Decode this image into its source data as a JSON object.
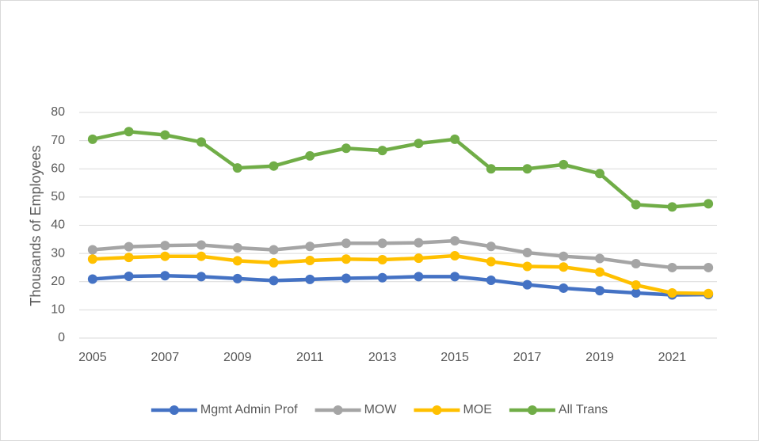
{
  "chart_data": {
    "type": "line",
    "y_label": "Thousands of Employees",
    "categories": [
      2005,
      null,
      2007,
      null,
      2009,
      null,
      2011,
      null,
      2013,
      null,
      2015,
      null,
      2017,
      null,
      2019,
      null,
      2021,
      null
    ],
    "series": [
      {
        "name": "Mgmt Admin Prof",
        "color": "#4472c4",
        "values": [
          20.9,
          21.9,
          22.1,
          21.8,
          21.1,
          20.4,
          20.8,
          21.2,
          21.4,
          21.8,
          21.8,
          20.5,
          18.9,
          17.7,
          16.8,
          16.0,
          15.3,
          15.4
        ]
      },
      {
        "name": "MOW",
        "color": "#a5a5a5",
        "values": [
          31.3,
          32.4,
          32.8,
          33.0,
          32.0,
          31.3,
          32.5,
          33.6,
          33.6,
          33.8,
          34.5,
          32.5,
          30.3,
          29.0,
          28.2,
          26.4,
          25.0,
          25.0
        ]
      },
      {
        "name": "MOE",
        "color": "#ffc000",
        "values": [
          28.0,
          28.6,
          29.0,
          29.0,
          27.4,
          26.7,
          27.5,
          28.0,
          27.8,
          28.3,
          29.2,
          27.1,
          25.4,
          25.2,
          23.4,
          18.8,
          16.0,
          15.8
        ]
      },
      {
        "name": "All Trans",
        "color": "#70ad47",
        "values": [
          70.5,
          73.2,
          72.0,
          69.5,
          60.3,
          61.0,
          64.6,
          67.3,
          66.5,
          69.0,
          70.5,
          60.0,
          60.0,
          61.5,
          58.3,
          47.3,
          46.5,
          47.6
        ]
      }
    ],
    "ylim": [
      0,
      80
    ],
    "yticks": [
      0,
      10,
      20,
      30,
      40,
      50,
      60,
      70,
      80
    ],
    "grid": true,
    "legend": "bottom"
  }
}
